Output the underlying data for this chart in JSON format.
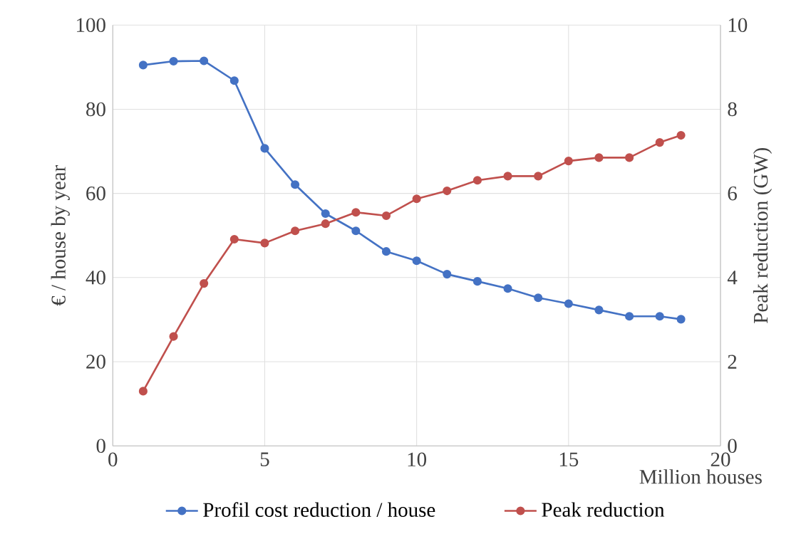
{
  "chart_data": {
    "type": "line",
    "xlabel": "Million houses",
    "ylabel": "€ / house by year",
    "y2label": "Peak reduction (GW)",
    "x": [
      1,
      2,
      3,
      4,
      5,
      6,
      7,
      8,
      9,
      10,
      11,
      12,
      13,
      14,
      15,
      16,
      17,
      18,
      18.7
    ],
    "series": [
      {
        "name": "Profil cost reduction / house",
        "color": "#4472c4",
        "values": [
          90.5,
          91.4,
          91.5,
          86.8,
          70.7,
          62.1,
          55.2,
          51.1,
          46.2,
          44.0,
          40.8,
          39.1,
          37.4,
          35.2,
          33.8,
          32.3,
          30.8,
          30.8,
          30.1
        ]
      },
      {
        "name": "Peak reduction",
        "color": "#c0504d",
        "axis": "y2",
        "values": [
          1.3,
          2.6,
          3.86,
          4.91,
          4.82,
          5.11,
          5.28,
          5.55,
          5.47,
          5.87,
          6.06,
          6.31,
          6.41,
          6.41,
          6.77,
          6.85,
          6.85,
          7.21,
          7.38
        ]
      }
    ],
    "xlim": [
      0,
      20
    ],
    "xticks": [
      0,
      5,
      10,
      15,
      20
    ],
    "ylim": [
      0,
      100
    ],
    "yticks": [
      0,
      20,
      40,
      60,
      80,
      100
    ],
    "y2lim": [
      0,
      10
    ],
    "y2ticks": [
      0,
      2,
      4,
      6,
      8,
      10
    ],
    "grid": true,
    "legend": "bottom",
    "marker": "circle",
    "line_style": "solid"
  }
}
